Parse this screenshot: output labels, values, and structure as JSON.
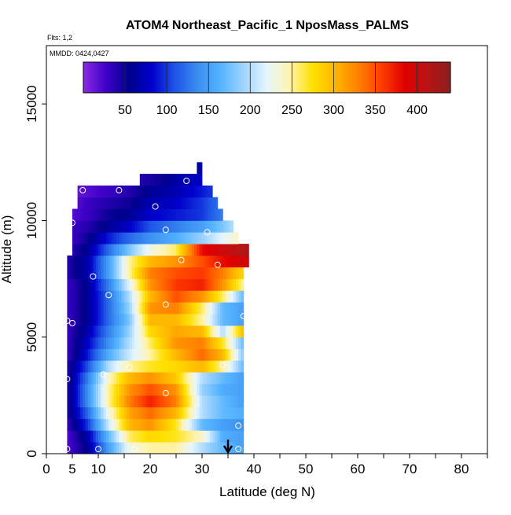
{
  "chart_data": {
    "type": "heatmap",
    "title": "ATOM4 Northeast_Pacific_1 NposMass_PALMS",
    "flights_label": "Flts: 1,2",
    "dates_label": "MMDD: 0424,0427",
    "xlabel": "Latitude (deg N)",
    "ylabel": "Altitude (m)",
    "xlim": [
      0,
      85
    ],
    "ylim": [
      0,
      17500
    ],
    "x_ticks": [
      0,
      5,
      10,
      20,
      30,
      40,
      50,
      60,
      70,
      80
    ],
    "x_minor_ticks": [
      15,
      25,
      35,
      45,
      55,
      65,
      75,
      85
    ],
    "y_ticks": [
      0,
      5000,
      10000,
      15000
    ],
    "colorbar": {
      "min": 0,
      "max": 440,
      "ticks": [
        50,
        100,
        150,
        200,
        250,
        300,
        350,
        400
      ],
      "colors": [
        "#8a2be2",
        "#3f00c8",
        "#00008b",
        "#0000cd",
        "#1e56e6",
        "#3b8ef0",
        "#55b4ff",
        "#9fd4ff",
        "#e6f6ff",
        "#fff4b0",
        "#ffe000",
        "#ffb400",
        "#ff8000",
        "#ff3c00",
        "#e00000",
        "#b81414",
        "#8c1e1e"
      ]
    },
    "marker_note": "arrow at latitude 35",
    "arrow_latitude": 35,
    "altitude_bins": [
      {
        "alt": 0,
        "lat_min": 4,
        "lat_max": 38,
        "points": [
          [
            4,
            20
          ],
          [
            8,
            60
          ],
          [
            12,
            150
          ],
          [
            16,
            230
          ],
          [
            20,
            250
          ],
          [
            25,
            250
          ],
          [
            30,
            200
          ],
          [
            34,
            170
          ],
          [
            38,
            150
          ]
        ]
      },
      {
        "alt": 500,
        "lat_min": 4,
        "lat_max": 38,
        "points": [
          [
            4,
            20
          ],
          [
            8,
            70
          ],
          [
            12,
            170
          ],
          [
            16,
            260
          ],
          [
            20,
            280
          ],
          [
            25,
            270
          ],
          [
            30,
            240
          ],
          [
            34,
            160
          ],
          [
            38,
            150
          ]
        ]
      },
      {
        "alt": 1000,
        "lat_min": 4,
        "lat_max": 38,
        "points": [
          [
            4,
            30
          ],
          [
            8,
            100
          ],
          [
            12,
            210
          ],
          [
            16,
            300
          ],
          [
            20,
            320
          ],
          [
            25,
            270
          ],
          [
            30,
            170
          ],
          [
            34,
            150
          ],
          [
            38,
            140
          ]
        ]
      },
      {
        "alt": 1500,
        "lat_min": 4,
        "lat_max": 38,
        "points": [
          [
            4,
            40
          ],
          [
            8,
            120
          ],
          [
            12,
            230
          ],
          [
            16,
            310
          ],
          [
            20,
            340
          ],
          [
            25,
            300
          ],
          [
            30,
            200
          ],
          [
            34,
            170
          ],
          [
            38,
            160
          ]
        ]
      },
      {
        "alt": 2000,
        "lat_min": 4,
        "lat_max": 38,
        "points": [
          [
            4,
            40
          ],
          [
            8,
            140
          ],
          [
            12,
            250
          ],
          [
            16,
            330
          ],
          [
            20,
            370
          ],
          [
            25,
            330
          ],
          [
            30,
            200
          ],
          [
            34,
            170
          ],
          [
            38,
            150
          ]
        ]
      },
      {
        "alt": 2500,
        "lat_min": 4,
        "lat_max": 38,
        "points": [
          [
            4,
            40
          ],
          [
            8,
            140
          ],
          [
            12,
            250
          ],
          [
            16,
            320
          ],
          [
            20,
            350
          ],
          [
            25,
            320
          ],
          [
            30,
            190
          ],
          [
            34,
            160
          ],
          [
            38,
            150
          ]
        ]
      },
      {
        "alt": 3000,
        "lat_min": 4,
        "lat_max": 38,
        "points": [
          [
            4,
            40
          ],
          [
            8,
            130
          ],
          [
            12,
            240
          ],
          [
            16,
            300
          ],
          [
            20,
            320
          ],
          [
            25,
            290
          ],
          [
            30,
            200
          ],
          [
            34,
            170
          ],
          [
            38,
            150
          ]
        ]
      },
      {
        "alt": 3500,
        "lat_min": 4,
        "lat_max": 38,
        "points": [
          [
            4,
            40
          ],
          [
            8,
            110
          ],
          [
            12,
            200
          ],
          [
            16,
            250
          ],
          [
            20,
            270
          ],
          [
            25,
            280
          ],
          [
            30,
            300
          ],
          [
            34,
            250
          ],
          [
            38,
            170
          ]
        ]
      },
      {
        "alt": 4000,
        "lat_min": 4,
        "lat_max": 38,
        "points": [
          [
            4,
            30
          ],
          [
            8,
            90
          ],
          [
            12,
            160
          ],
          [
            16,
            210
          ],
          [
            20,
            250
          ],
          [
            25,
            300
          ],
          [
            30,
            340
          ],
          [
            34,
            300
          ],
          [
            38,
            180
          ]
        ]
      },
      {
        "alt": 4500,
        "lat_min": 4,
        "lat_max": 38,
        "points": [
          [
            4,
            30
          ],
          [
            8,
            80
          ],
          [
            12,
            140
          ],
          [
            16,
            200
          ],
          [
            20,
            260
          ],
          [
            25,
            320
          ],
          [
            30,
            330
          ],
          [
            34,
            270
          ],
          [
            38,
            170
          ]
        ]
      },
      {
        "alt": 5000,
        "lat_min": 4,
        "lat_max": 38,
        "points": [
          [
            4,
            30
          ],
          [
            8,
            70
          ],
          [
            12,
            130
          ],
          [
            16,
            190
          ],
          [
            20,
            280
          ],
          [
            25,
            310
          ],
          [
            30,
            300
          ],
          [
            34,
            200
          ],
          [
            38,
            300
          ]
        ]
      },
      {
        "alt": 5500,
        "lat_min": 4,
        "lat_max": 38,
        "points": [
          [
            4,
            30
          ],
          [
            8,
            60
          ],
          [
            12,
            120
          ],
          [
            16,
            180
          ],
          [
            20,
            300
          ],
          [
            25,
            300
          ],
          [
            30,
            250
          ],
          [
            34,
            170
          ],
          [
            38,
            150
          ]
        ]
      },
      {
        "alt": 6000,
        "lat_min": 4,
        "lat_max": 38,
        "points": [
          [
            4,
            30
          ],
          [
            8,
            60
          ],
          [
            12,
            120
          ],
          [
            16,
            190
          ],
          [
            20,
            320
          ],
          [
            25,
            330
          ],
          [
            30,
            260
          ],
          [
            34,
            170
          ],
          [
            38,
            150
          ]
        ]
      },
      {
        "alt": 6500,
        "lat_min": 4,
        "lat_max": 38,
        "points": [
          [
            4,
            30
          ],
          [
            8,
            60
          ],
          [
            12,
            120
          ],
          [
            16,
            200
          ],
          [
            20,
            300
          ],
          [
            25,
            350
          ],
          [
            30,
            320
          ],
          [
            34,
            260
          ],
          [
            38,
            170
          ]
        ]
      },
      {
        "alt": 7000,
        "lat_min": 4,
        "lat_max": 38,
        "points": [
          [
            4,
            30
          ],
          [
            8,
            60
          ],
          [
            12,
            130
          ],
          [
            16,
            220
          ],
          [
            20,
            320
          ],
          [
            25,
            360
          ],
          [
            30,
            370
          ],
          [
            34,
            320
          ],
          [
            38,
            250
          ]
        ]
      },
      {
        "alt": 7500,
        "lat_min": 4,
        "lat_max": 38,
        "points": [
          [
            4,
            40
          ],
          [
            8,
            70
          ],
          [
            12,
            150
          ],
          [
            16,
            250
          ],
          [
            20,
            330
          ],
          [
            25,
            350
          ],
          [
            30,
            360
          ],
          [
            34,
            330
          ],
          [
            38,
            280
          ]
        ]
      },
      {
        "alt": 8000,
        "lat_min": 4,
        "lat_max": 39,
        "points": [
          [
            4,
            40
          ],
          [
            8,
            70
          ],
          [
            12,
            150
          ],
          [
            16,
            250
          ],
          [
            20,
            300
          ],
          [
            25,
            320
          ],
          [
            30,
            350
          ],
          [
            34,
            380
          ],
          [
            39,
            400
          ]
        ]
      },
      {
        "alt": 8500,
        "lat_min": 5,
        "lat_max": 39,
        "points": [
          [
            5,
            40
          ],
          [
            8,
            60
          ],
          [
            12,
            120
          ],
          [
            16,
            180
          ],
          [
            20,
            230
          ],
          [
            25,
            260
          ],
          [
            30,
            380
          ],
          [
            34,
            400
          ],
          [
            39,
            420
          ]
        ]
      },
      {
        "alt": 9000,
        "lat_min": 5,
        "lat_max": 37,
        "points": [
          [
            5,
            30
          ],
          [
            8,
            50
          ],
          [
            12,
            90
          ],
          [
            16,
            120
          ],
          [
            20,
            140
          ],
          [
            25,
            160
          ],
          [
            30,
            190
          ],
          [
            34,
            220
          ],
          [
            37,
            240
          ]
        ]
      },
      {
        "alt": 9500,
        "lat_min": 5,
        "lat_max": 36,
        "points": [
          [
            5,
            30
          ],
          [
            8,
            40
          ],
          [
            12,
            60
          ],
          [
            16,
            80
          ],
          [
            20,
            110
          ],
          [
            25,
            130
          ],
          [
            30,
            150
          ],
          [
            34,
            180
          ],
          [
            36,
            200
          ]
        ]
      },
      {
        "alt": 10000,
        "lat_min": 5,
        "lat_max": 34,
        "points": [
          [
            5,
            20
          ],
          [
            8,
            30
          ],
          [
            12,
            50
          ],
          [
            16,
            60
          ],
          [
            20,
            80
          ],
          [
            25,
            90
          ],
          [
            30,
            100
          ],
          [
            34,
            130
          ]
        ]
      },
      {
        "alt": 10500,
        "lat_min": 6,
        "lat_max": 33,
        "points": [
          [
            6,
            20
          ],
          [
            8,
            30
          ],
          [
            12,
            40
          ],
          [
            16,
            50
          ],
          [
            20,
            70
          ],
          [
            25,
            80
          ],
          [
            30,
            100
          ],
          [
            33,
            120
          ]
        ]
      },
      {
        "alt": 11000,
        "lat_min": 6,
        "lat_max": 32,
        "points": [
          [
            6,
            15
          ],
          [
            8,
            20
          ],
          [
            12,
            30
          ],
          [
            16,
            40
          ],
          [
            20,
            60
          ],
          [
            25,
            70
          ],
          [
            30,
            90
          ],
          [
            32,
            100
          ]
        ]
      },
      {
        "alt": 11500,
        "lat_min": 18,
        "lat_max": 30,
        "points": [
          [
            18,
            40
          ],
          [
            22,
            50
          ],
          [
            26,
            70
          ],
          [
            30,
            80
          ]
        ]
      },
      {
        "alt": 12000,
        "lat_min": 29,
        "lat_max": 30,
        "points": [
          [
            29,
            60
          ],
          [
            30,
            70
          ]
        ]
      }
    ],
    "sample_points": [
      [
        4,
        200
      ],
      [
        10,
        200
      ],
      [
        17,
        200
      ],
      [
        37,
        200
      ],
      [
        37,
        1200
      ],
      [
        4,
        3200
      ],
      [
        11,
        3400
      ],
      [
        16,
        3700
      ],
      [
        23,
        2600
      ],
      [
        34,
        3800
      ],
      [
        4,
        5700
      ],
      [
        5,
        5600
      ],
      [
        12,
        6800
      ],
      [
        23,
        6400
      ],
      [
        38,
        5900
      ],
      [
        9,
        7600
      ],
      [
        26,
        8300
      ],
      [
        33,
        8100
      ],
      [
        5,
        9900
      ],
      [
        23,
        9600
      ],
      [
        31,
        9500
      ],
      [
        7,
        11300
      ],
      [
        14,
        11300
      ],
      [
        21,
        10600
      ],
      [
        27,
        11700
      ]
    ]
  }
}
